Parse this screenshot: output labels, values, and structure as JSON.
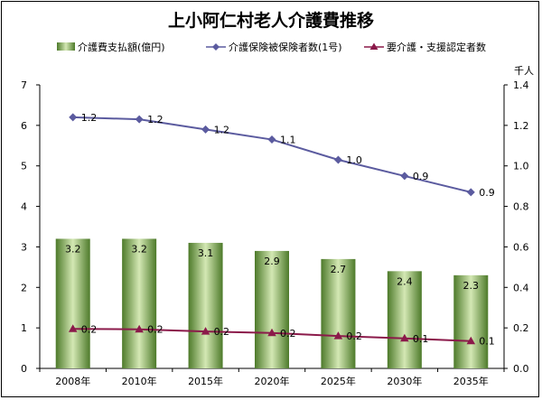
{
  "chart_data": {
    "type": "bar",
    "title": "上小阿仁村老人介護費推移",
    "categories": [
      "2008年",
      "2010年",
      "2015年",
      "2020年",
      "2025年",
      "2030年",
      "2035年"
    ],
    "bars": {
      "name": "介護費支払額(億円)",
      "values": [
        3.2,
        3.2,
        3.1,
        2.9,
        2.7,
        2.4,
        2.3
      ],
      "labels": [
        "3.2",
        "3.2",
        "3.1",
        "2.9",
        "2.7",
        "2.4",
        "2.3"
      ]
    },
    "lines": [
      {
        "name": "介護保険被保険者数(1号)",
        "values": [
          1.24,
          1.23,
          1.18,
          1.13,
          1.03,
          0.95,
          0.87
        ],
        "labels": [
          "1.2",
          "1.2",
          "1.2",
          "1.1",
          "1.0",
          "0.9",
          "0.9"
        ],
        "color": "#5b5b9f"
      },
      {
        "name": "要介護・支援認定者数",
        "values": [
          0.195,
          0.193,
          0.182,
          0.175,
          0.16,
          0.148,
          0.135
        ],
        "labels": [
          "0.2",
          "0.2",
          "0.2",
          "0.2",
          "0.2",
          "0.1",
          "0.1"
        ],
        "color": "#8b1a4a"
      }
    ],
    "y_left": {
      "min": 0,
      "max": 7,
      "ticks": [
        "0",
        "1",
        "2",
        "3",
        "4",
        "5",
        "6",
        "7"
      ]
    },
    "y_right": {
      "min": 0,
      "max": 1.4,
      "unit": "千人",
      "ticks": [
        "0.0",
        "0.2",
        "0.4",
        "0.6",
        "0.8",
        "1.0",
        "1.2",
        "1.4"
      ]
    },
    "legend_position": "top"
  }
}
